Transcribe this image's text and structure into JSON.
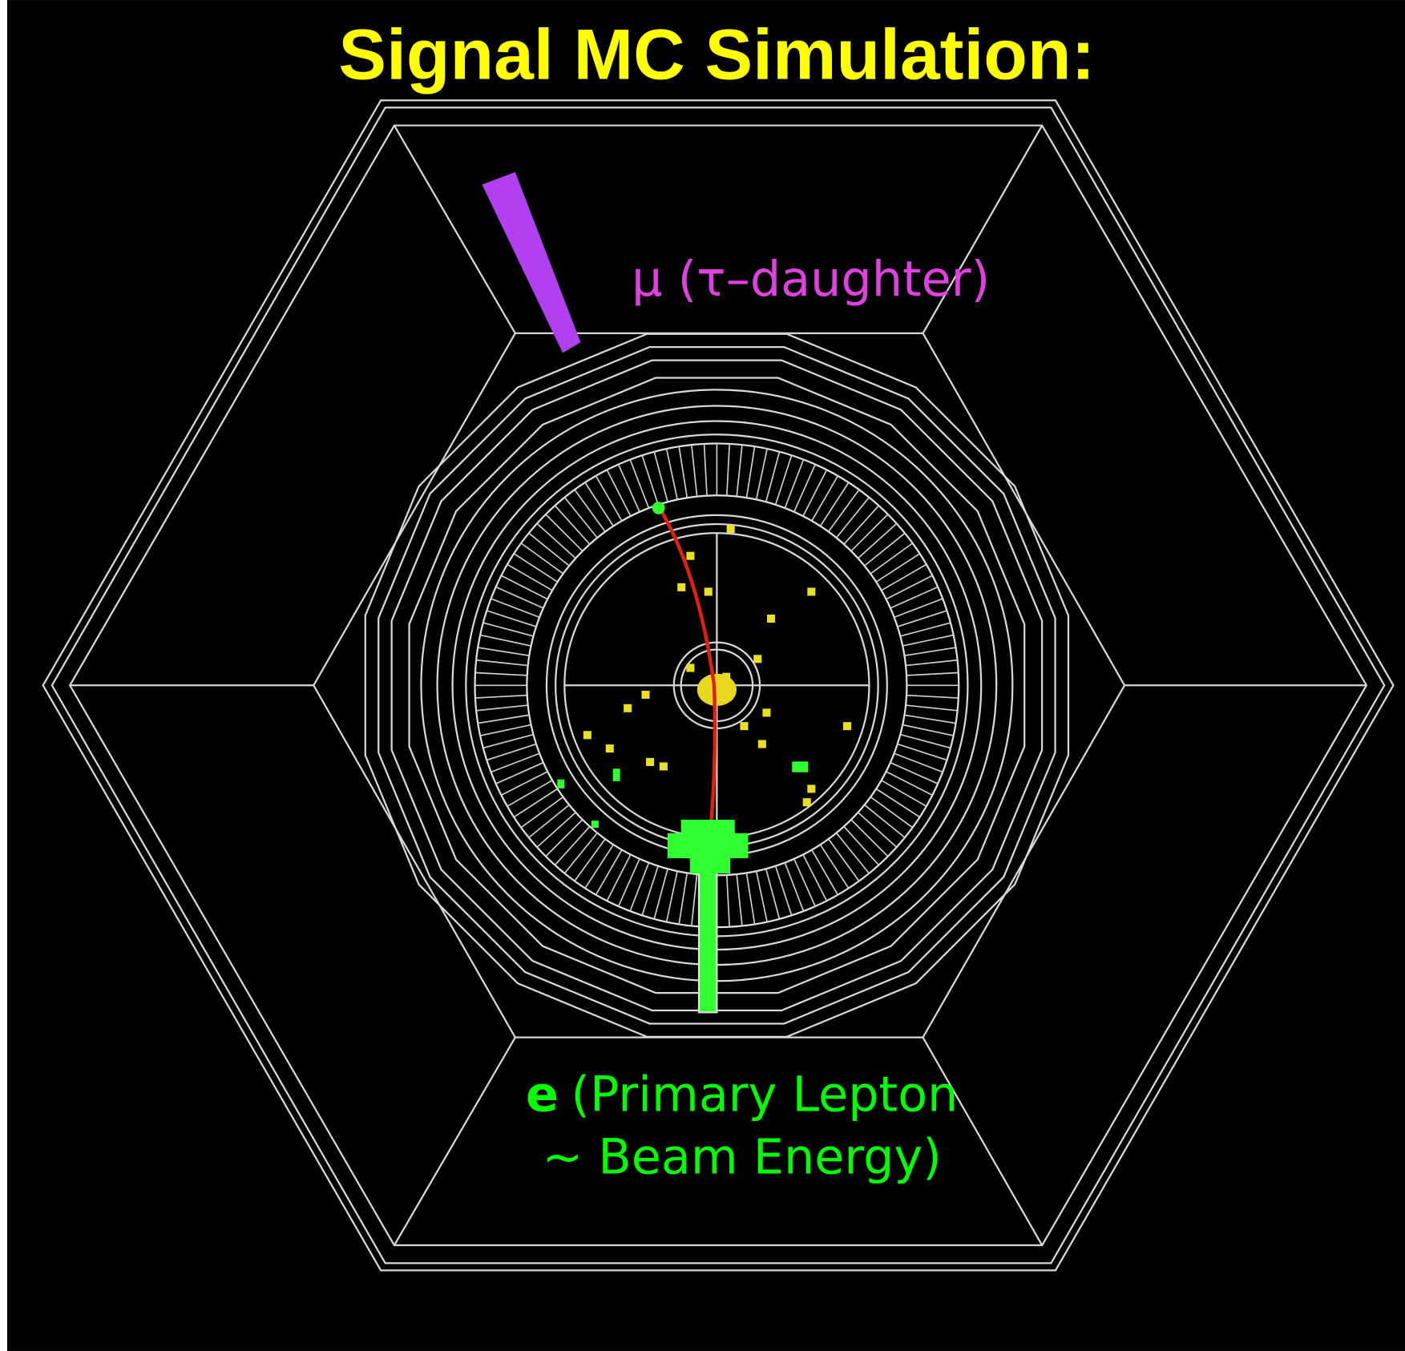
{
  "title": "Signal MC Simulation:",
  "labels": {
    "muon": "μ (τ–daughter)",
    "electron": {
      "symbol": "e",
      "line1": "(Primary Lepton",
      "line2": "~ Beam Energy)"
    }
  }
}
